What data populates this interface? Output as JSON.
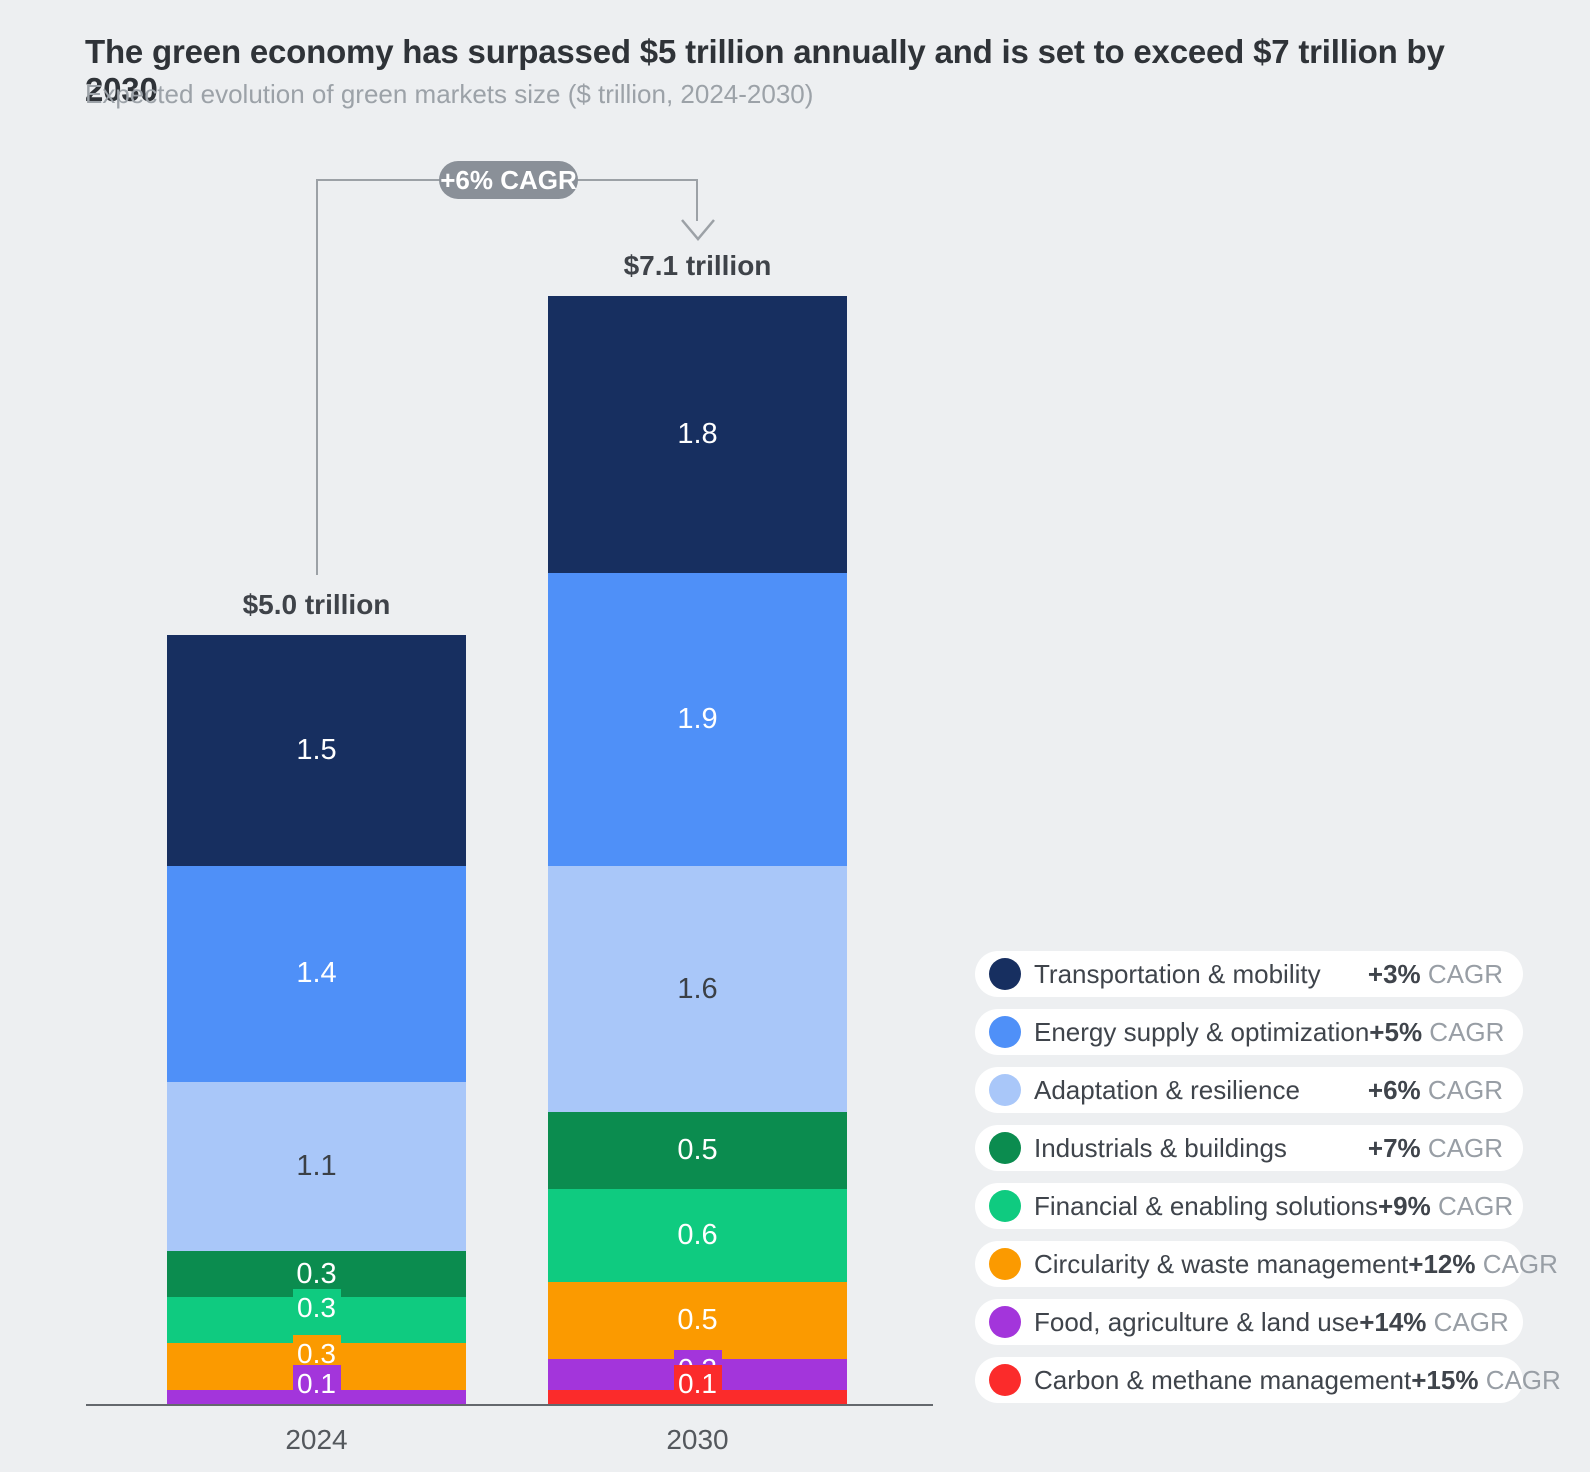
{
  "title": "The green economy has surpassed $5 trillion annually and is set to exceed $7 trillion by 2030",
  "subtitle": "Expected evolution of green markets size ($ trillion, 2024-2030)",
  "chart_data": {
    "type": "bar",
    "stacked": true,
    "unit": "$ trillion",
    "grid": false,
    "legend_position": "right",
    "overall_cagr": "+6% CAGR",
    "categories": [
      "2024",
      "2030"
    ],
    "totals": [
      "$5.0 trillion",
      "$7.1 trillion"
    ],
    "legend_suffix": "CAGR",
    "series": [
      {
        "name": "Transportation & mobility",
        "cagr": "+3%",
        "color": "#172F60",
        "label_color": "#FFFFFF",
        "values": [
          1.5,
          1.8
        ],
        "label_styles": [
          "inline",
          "inline"
        ]
      },
      {
        "name": "Energy supply & optimization",
        "cagr": "+5%",
        "color": "#4F90F8",
        "label_color": "#FFFFFF",
        "values": [
          1.4,
          1.9
        ],
        "label_styles": [
          "inline",
          "inline"
        ]
      },
      {
        "name": "Adaptation & resilience",
        "cagr": "+6%",
        "color": "#A9C7F9",
        "label_color": "#3B4046",
        "values": [
          1.1,
          1.6
        ],
        "label_styles": [
          "inline",
          "inline"
        ]
      },
      {
        "name": "Industrials & buildings",
        "cagr": "+7%",
        "color": "#0B8C4F",
        "label_color": "#FFFFFF",
        "values": [
          0.3,
          0.5
        ],
        "label_styles": [
          "inline",
          "inline"
        ]
      },
      {
        "name": "Financial & enabling solutions",
        "cagr": "+9%",
        "color": "#0FCB80",
        "label_color": "#FFFFFF",
        "values": [
          0.3,
          0.6
        ],
        "label_styles": [
          "tab",
          "inline"
        ]
      },
      {
        "name": "Circularity & waste management",
        "cagr": "+12%",
        "color": "#FB9A00",
        "label_color": "#FFFFFF",
        "values": [
          0.3,
          0.5
        ],
        "label_styles": [
          "tab",
          "inline"
        ]
      },
      {
        "name": "Food, agriculture & land use",
        "cagr": "+14%",
        "color": "#A335DB",
        "label_color": "#FFFFFF",
        "values": [
          0.1,
          0.2
        ],
        "label_styles": [
          "tab",
          "tab"
        ]
      },
      {
        "name": "Carbon & methane management",
        "cagr": "+15%",
        "color": "#FB2B2B",
        "label_color": "#FFFFFF",
        "values": [
          0.0,
          0.1
        ],
        "label_styles": [
          "none",
          "tab"
        ]
      }
    ]
  }
}
